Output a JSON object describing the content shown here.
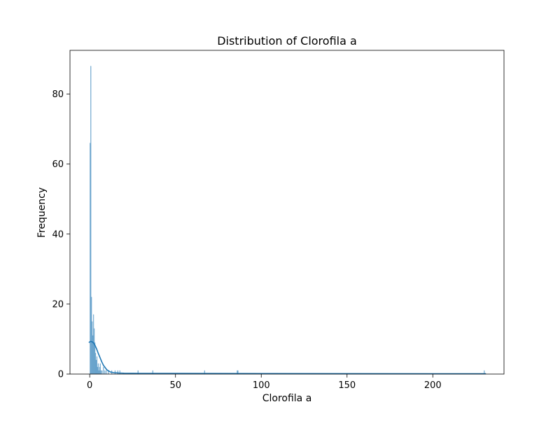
{
  "chart_data": {
    "type": "bar",
    "title": "Distribution of Clorofila a",
    "xlabel": "Clorofila a",
    "ylabel": "Frequency",
    "xlim": [
      -11.5,
      241.5
    ],
    "ylim": [
      0,
      92.5
    ],
    "xticks": [
      0,
      50,
      100,
      150,
      200
    ],
    "yticks": [
      0,
      20,
      40,
      60,
      80
    ],
    "grid": false,
    "colors": {
      "bar": "#1f77b4",
      "kde": "#1f77b4"
    },
    "bin_width": 0.4,
    "bins": [
      {
        "x": 0.0,
        "count": 66
      },
      {
        "x": 0.4,
        "count": 88
      },
      {
        "x": 0.8,
        "count": 22
      },
      {
        "x": 1.2,
        "count": 15
      },
      {
        "x": 1.6,
        "count": 11
      },
      {
        "x": 2.0,
        "count": 17
      },
      {
        "x": 2.4,
        "count": 13
      },
      {
        "x": 2.8,
        "count": 9
      },
      {
        "x": 3.2,
        "count": 6
      },
      {
        "x": 3.6,
        "count": 4
      },
      {
        "x": 4.0,
        "count": 5
      },
      {
        "x": 4.4,
        "count": 2
      },
      {
        "x": 4.8,
        "count": 3
      },
      {
        "x": 5.2,
        "count": 1
      },
      {
        "x": 5.6,
        "count": 2
      },
      {
        "x": 6.0,
        "count": 3
      },
      {
        "x": 6.4,
        "count": 1
      },
      {
        "x": 7.0,
        "count": 1
      },
      {
        "x": 7.8,
        "count": 2
      },
      {
        "x": 8.6,
        "count": 1
      },
      {
        "x": 9.4,
        "count": 1
      },
      {
        "x": 10.6,
        "count": 1
      },
      {
        "x": 12.6,
        "count": 1
      },
      {
        "x": 14.6,
        "count": 1
      },
      {
        "x": 16.2,
        "count": 1
      },
      {
        "x": 17.4,
        "count": 1
      },
      {
        "x": 28.0,
        "count": 1
      },
      {
        "x": 36.6,
        "count": 1
      },
      {
        "x": 66.8,
        "count": 1
      },
      {
        "x": 85.8,
        "count": 1
      },
      {
        "x": 86.2,
        "count": 1
      },
      {
        "x": 229.8,
        "count": 1
      }
    ],
    "kde": {
      "x": [
        -0.5,
        0,
        0.5,
        1,
        1.5,
        2,
        2.5,
        3,
        4,
        5,
        6,
        7,
        8,
        10,
        12,
        14,
        17,
        20,
        30,
        50,
        100,
        150,
        200,
        231
      ],
      "y": [
        9.0,
        9.2,
        9.3,
        9.3,
        9.2,
        9.0,
        8.7,
        8.3,
        7.2,
        5.9,
        4.7,
        3.5,
        2.5,
        1.2,
        0.6,
        0.4,
        0.3,
        0.25,
        0.2,
        0.2,
        0.15,
        0.12,
        0.1,
        0.1
      ]
    }
  }
}
